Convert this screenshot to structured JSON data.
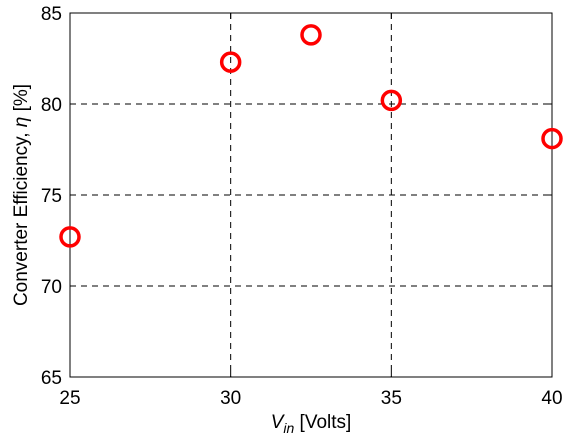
{
  "chart_data": {
    "type": "scatter",
    "x": [
      25,
      30,
      32.5,
      35,
      40
    ],
    "y": [
      72.7,
      82.3,
      83.8,
      80.2,
      78.1
    ],
    "xlabel": {
      "main": "V",
      "sub": "in",
      "unit": " [Volts]"
    },
    "ylabel": {
      "text": "Converter Efficiency, ",
      "symbol": "η",
      "unit": " [%]"
    },
    "xlim": [
      25,
      40
    ],
    "ylim": [
      65,
      85
    ],
    "xticks": [
      25,
      30,
      35,
      40
    ],
    "yticks": [
      65,
      70,
      75,
      80,
      85
    ],
    "xtick_labels": [
      "25",
      "30",
      "35",
      "40"
    ],
    "ytick_labels": [
      "65",
      "70",
      "75",
      "80",
      "85"
    ],
    "grid": true,
    "marker": "circle-open",
    "colors": {
      "marker": "#ff0000",
      "grid": "#000000",
      "axis": "#000000"
    }
  }
}
